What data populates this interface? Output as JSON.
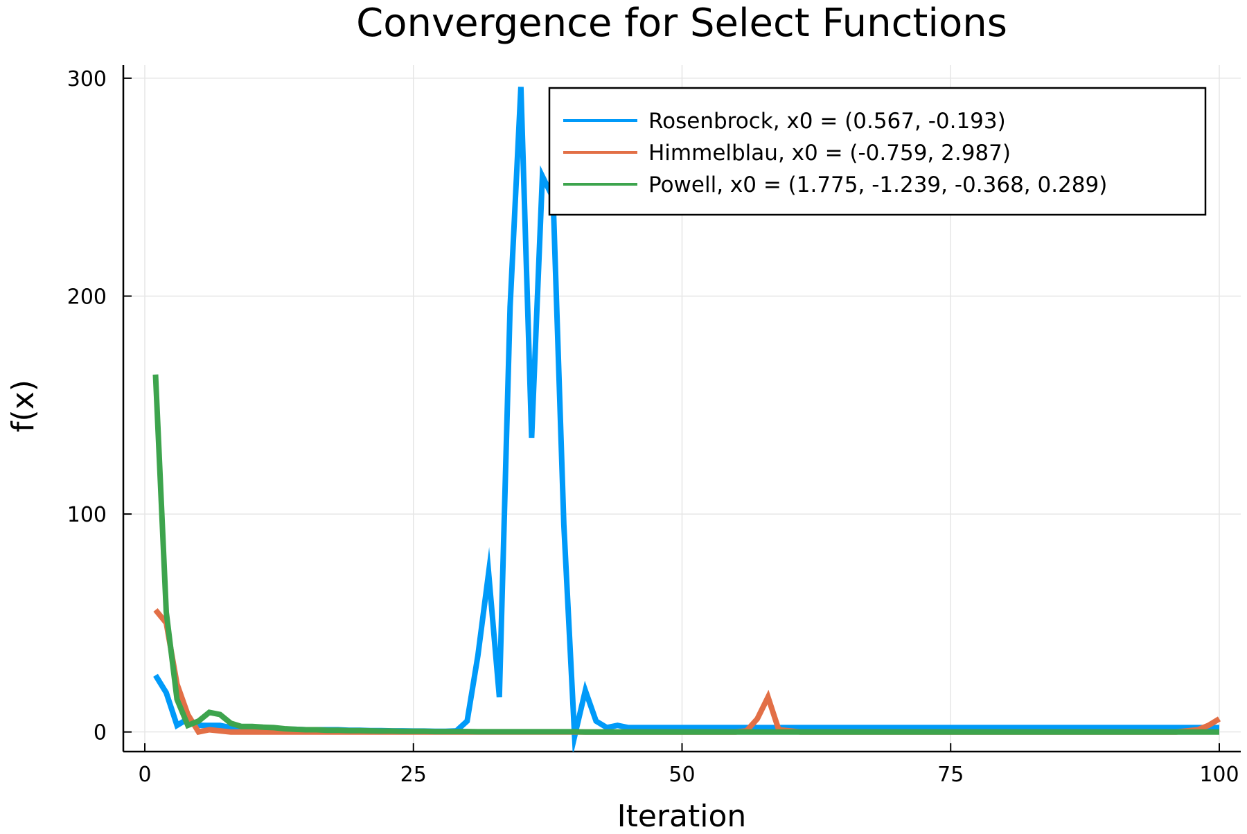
{
  "chart_data": {
    "type": "line",
    "title": "Convergence for Select Functions",
    "xlabel": "Iteration",
    "ylabel": "f(x)",
    "xlim": [
      -2,
      102
    ],
    "ylim": [
      -9,
      306
    ],
    "xticks": [
      0,
      25,
      50,
      75,
      100
    ],
    "xtick_labels": [
      "0",
      "25",
      "50",
      "75",
      "100"
    ],
    "yticks": [
      0,
      100,
      200,
      300
    ],
    "ytick_labels": [
      "0",
      "100",
      "200",
      "300"
    ],
    "grid": true,
    "legend_position": "top-right",
    "series": [
      {
        "name": "Rosenbrock, x0 = (0.567, -0.193)",
        "color": "#009af9",
        "x": [
          1,
          2,
          3,
          4,
          5,
          6,
          7,
          8,
          9,
          10,
          11,
          12,
          13,
          14,
          15,
          16,
          17,
          18,
          19,
          20,
          21,
          22,
          23,
          24,
          25,
          26,
          27,
          28,
          29,
          30,
          31,
          32,
          33,
          34,
          35,
          36,
          37,
          38,
          39,
          40,
          41,
          42,
          43,
          44,
          45,
          46,
          47,
          48,
          49,
          50,
          51,
          52,
          53,
          54,
          55,
          56,
          57,
          58,
          59,
          60,
          61,
          62,
          63,
          64,
          65,
          66,
          67,
          68,
          69,
          70,
          71,
          72,
          73,
          74,
          75,
          76,
          77,
          78,
          79,
          80,
          81,
          82,
          83,
          84,
          85,
          86,
          87,
          88,
          89,
          90,
          91,
          92,
          93,
          94,
          95,
          96,
          97,
          98,
          99,
          100
        ],
        "y": [
          26,
          18,
          3,
          6,
          3,
          3,
          3,
          2,
          2,
          2,
          1.5,
          1.5,
          1.2,
          1.2,
          1,
          1,
          1,
          1,
          0.8,
          0.8,
          0.6,
          0.6,
          0.5,
          0.5,
          0.4,
          0.4,
          0.3,
          0.3,
          0.5,
          5,
          35,
          73,
          16,
          195,
          296,
          135,
          255,
          245,
          95,
          -2,
          19,
          5,
          2,
          3,
          2,
          2,
          2,
          2,
          2,
          2,
          2,
          2,
          2,
          2,
          2,
          2,
          2,
          2,
          2,
          2,
          2,
          2,
          2,
          2,
          2,
          2,
          2,
          2,
          2,
          2,
          2,
          2,
          2,
          2,
          2,
          2,
          2,
          2,
          2,
          2,
          2,
          2,
          2,
          2,
          2,
          2,
          2,
          2,
          2,
          2,
          2,
          2,
          2,
          2,
          2,
          2,
          2,
          2,
          2,
          2
        ]
      },
      {
        "name": "Himmelblau, x0 = (-0.759, 2.987)",
        "color": "#e26f46",
        "x": [
          1,
          2,
          3,
          4,
          5,
          6,
          7,
          8,
          9,
          10,
          11,
          12,
          13,
          14,
          15,
          16,
          17,
          18,
          19,
          20,
          21,
          22,
          23,
          24,
          25,
          26,
          27,
          28,
          29,
          30,
          31,
          32,
          33,
          34,
          35,
          36,
          37,
          38,
          39,
          40,
          41,
          42,
          43,
          44,
          45,
          46,
          47,
          48,
          49,
          50,
          51,
          52,
          53,
          54,
          55,
          56,
          57,
          58,
          59,
          60,
          61,
          62,
          63,
          64,
          65,
          66,
          67,
          68,
          69,
          70,
          71,
          72,
          73,
          74,
          75,
          76,
          77,
          78,
          79,
          80,
          81,
          82,
          83,
          84,
          85,
          86,
          87,
          88,
          89,
          90,
          91,
          92,
          93,
          94,
          95,
          96,
          97,
          98,
          99,
          100
        ],
        "y": [
          56,
          50,
          22,
          8,
          0,
          1,
          0.5,
          0,
          0,
          0,
          0,
          0,
          0,
          0,
          0,
          0,
          0,
          0,
          0,
          0,
          0,
          0,
          0,
          0,
          0,
          0,
          0,
          0,
          0,
          0,
          0,
          0,
          0,
          0,
          0,
          0,
          0,
          0,
          0,
          0,
          0,
          0,
          0,
          0,
          0,
          0,
          0,
          0,
          0,
          0,
          0,
          0,
          0,
          0,
          0,
          0.5,
          6,
          16,
          1,
          0.5,
          0,
          0,
          0,
          0,
          0,
          0,
          0,
          0,
          0,
          0,
          0,
          0,
          0,
          0,
          0,
          0,
          0,
          0,
          0,
          0,
          0,
          0,
          0,
          0,
          0,
          0,
          0,
          0,
          0,
          0,
          0,
          0,
          0,
          0,
          0,
          0,
          0.5,
          1,
          3,
          6
        ]
      },
      {
        "name": "Powell, x0 = (1.775, -1.239, -0.368, 0.289)",
        "color": "#3da44d",
        "x": [
          1,
          2,
          3,
          4,
          5,
          6,
          7,
          8,
          9,
          10,
          11,
          12,
          13,
          14,
          15,
          16,
          17,
          18,
          19,
          20,
          21,
          22,
          23,
          24,
          25,
          26,
          27,
          28,
          29,
          30,
          31,
          32,
          33,
          34,
          35,
          36,
          37,
          38,
          39,
          40,
          41,
          42,
          43,
          44,
          45,
          46,
          47,
          48,
          49,
          50,
          51,
          52,
          53,
          54,
          55,
          56,
          57,
          58,
          59,
          60,
          61,
          62,
          63,
          64,
          65,
          66,
          67,
          68,
          69,
          70,
          71,
          72,
          73,
          74,
          75,
          76,
          77,
          78,
          79,
          80,
          81,
          82,
          83,
          84,
          85,
          86,
          87,
          88,
          89,
          90,
          91,
          92,
          93,
          94,
          95,
          96,
          97,
          98,
          99,
          100
        ],
        "y": [
          164,
          55,
          15,
          3,
          5,
          9,
          8,
          4,
          2.5,
          2.5,
          2.2,
          2,
          1.5,
          1.2,
          1,
          1,
          0.8,
          0.8,
          0.6,
          0.6,
          0.5,
          0.4,
          0.4,
          0.3,
          0.3,
          0.3,
          0.2,
          0.2,
          0.2,
          0.2,
          0.1,
          0.1,
          0.1,
          0.1,
          0.1,
          0.1,
          0.1,
          0.1,
          0.1,
          0.1,
          0,
          0,
          0,
          0,
          0,
          0,
          0,
          0,
          0,
          0,
          0,
          0,
          0,
          0,
          0,
          0,
          0,
          0,
          0,
          0,
          0,
          0,
          0,
          0,
          0,
          0,
          0,
          0,
          0,
          0,
          0,
          0,
          0,
          0,
          0,
          0,
          0,
          0,
          0,
          0,
          0,
          0,
          0,
          0,
          0,
          0,
          0,
          0,
          0,
          0,
          0,
          0,
          0,
          0,
          0,
          0,
          0,
          0,
          0,
          0
        ]
      }
    ]
  }
}
